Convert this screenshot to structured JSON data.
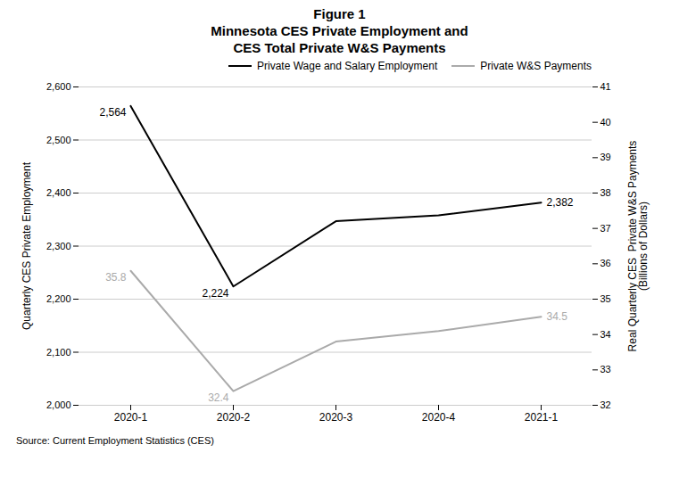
{
  "chart_data": {
    "type": "line",
    "title": "Figure 1",
    "subtitle": "Minnesota CES Private Employment and\nCES Total Private W&S Payments",
    "categories": [
      "2020-1",
      "2020-2",
      "2020-3",
      "2020-4",
      "2021-1"
    ],
    "series": [
      {
        "name": "Private Wage and Salary Employment",
        "color": "#000000",
        "axis": "y",
        "values": [
          2564,
          2224,
          2347,
          2358,
          2382
        ]
      },
      {
        "name": "Private W&S Payments",
        "color": "#aaaaaa",
        "axis": "y2",
        "values": [
          35.8,
          32.4,
          33.8,
          34.1,
          34.5
        ]
      }
    ],
    "ylabel": "Quarterly CES Private Employment",
    "y2label": "Real Quarterly CES  Private W&S Payments\n(Billions of Dollars)",
    "ylim": [
      2000,
      2600
    ],
    "yticks": [
      {
        "value": 2000,
        "label": "2,000"
      },
      {
        "value": 2100,
        "label": "2,100"
      },
      {
        "value": 2200,
        "label": "2,200"
      },
      {
        "value": 2300,
        "label": "2,300"
      },
      {
        "value": 2400,
        "label": "2,400"
      },
      {
        "value": 2500,
        "label": "2,500"
      },
      {
        "value": 2600,
        "label": "2,600"
      }
    ],
    "y2lim": [
      32,
      41
    ],
    "y2ticks": [
      32,
      33,
      34,
      35,
      36,
      37,
      38,
      39,
      40,
      41
    ],
    "grid": true,
    "legend": "upper right",
    "annotations": [
      {
        "text": "2,564",
        "x": "2020-1",
        "y": 2564,
        "axis": "y"
      },
      {
        "text": "2,224",
        "x": "2020-2",
        "y": 2224,
        "axis": "y"
      },
      {
        "text": "2,382",
        "x": "2021-1",
        "y": 2382,
        "axis": "y"
      },
      {
        "text": "35.8",
        "x": "2020-1",
        "y": 35.8,
        "axis": "y2"
      },
      {
        "text": "32.4",
        "x": "2020-2",
        "y": 32.4,
        "axis": "y2"
      },
      {
        "text": "34.5",
        "x": "2021-1",
        "y": 34.5,
        "axis": "y2"
      }
    ],
    "source": "Source: Current Employment Statistics (CES)"
  }
}
